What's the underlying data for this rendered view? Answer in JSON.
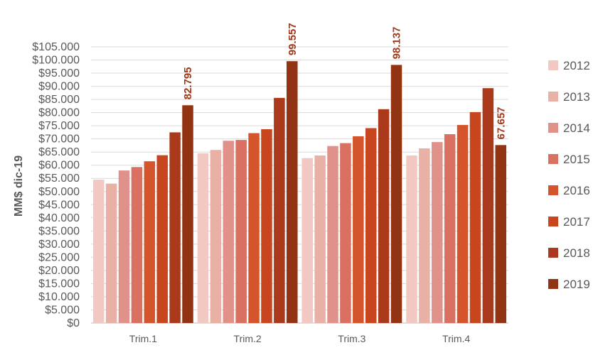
{
  "chart_data": {
    "type": "bar",
    "ylabel": "MM$ dic-19",
    "xlabel": "",
    "categories": [
      "Trim.1",
      "Trim.2",
      "Trim.3",
      "Trim.4"
    ],
    "ylim": [
      0,
      105000
    ],
    "yticks": [
      "$0",
      "$5.000",
      "$10.000",
      "$15.000",
      "$20.000",
      "$25.000",
      "$30.000",
      "$35.000",
      "$40.000",
      "$45.000",
      "$50.000",
      "$55.000",
      "$60.000",
      "$65.000",
      "$70.000",
      "$75.000",
      "$80.000",
      "$85.000",
      "$90.000",
      "$95.000",
      "$100.000",
      "$105.000"
    ],
    "grid": true,
    "legend": "right",
    "series": [
      {
        "name": "2012",
        "color": "#F2C9C2",
        "values": [
          54500,
          64500,
          62700,
          63700
        ]
      },
      {
        "name": "2013",
        "color": "#E9B0A6",
        "values": [
          53000,
          65800,
          63700,
          66400
        ]
      },
      {
        "name": "2014",
        "color": "#E0918A",
        "values": [
          58000,
          69300,
          67300,
          68800
        ]
      },
      {
        "name": "2015",
        "color": "#D97062",
        "values": [
          59300,
          69600,
          68400,
          71800
        ]
      },
      {
        "name": "2016",
        "color": "#D4552C",
        "values": [
          61500,
          72200,
          71000,
          75300
        ]
      },
      {
        "name": "2017",
        "color": "#C8461E",
        "values": [
          63800,
          73700,
          74100,
          80200
        ]
      },
      {
        "name": "2018",
        "color": "#AA3A1B",
        "values": [
          72500,
          85600,
          81300,
          89300
        ]
      },
      {
        "name": "2019",
        "color": "#923314",
        "values": [
          82795,
          99557,
          98137,
          67657
        ],
        "data_labels": [
          "82.795",
          "99.557",
          "98.137",
          "67.657"
        ],
        "label_color": "#A0391A"
      }
    ]
  }
}
